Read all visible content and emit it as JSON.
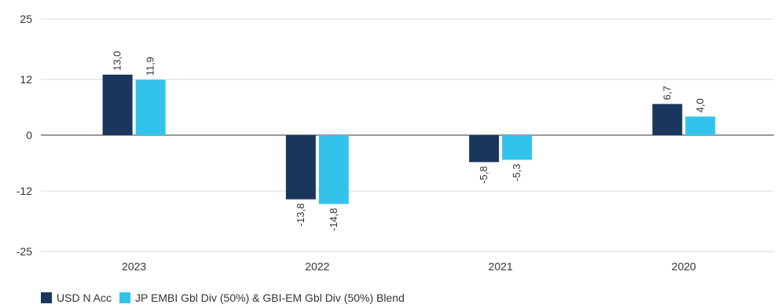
{
  "chart_data": {
    "type": "bar",
    "categories": [
      "2023",
      "2022",
      "2021",
      "2020"
    ],
    "series": [
      {
        "name": "USD N Acc",
        "values": [
          13.0,
          -13.8,
          -5.8,
          6.7
        ],
        "labels": [
          "13,0",
          "-13,8",
          "-5,8",
          "6,7"
        ],
        "color": "#1b365d"
      },
      {
        "name": "JP EMBI Gbl Div (50%) & GBI-EM Gbl Div (50%) Blend",
        "values": [
          11.9,
          -14.8,
          -5.3,
          4.0
        ],
        "labels": [
          "11,9",
          "-14,8",
          "-5,3",
          "4,0"
        ],
        "color": "#33c3ea"
      }
    ],
    "yticks": [
      25,
      12,
      0,
      -12,
      -25
    ],
    "ylim": [
      -25,
      25
    ],
    "grid": "horizontal",
    "legend_position": "bottom-left",
    "title": "",
    "xlabel": "",
    "ylabel": ""
  }
}
